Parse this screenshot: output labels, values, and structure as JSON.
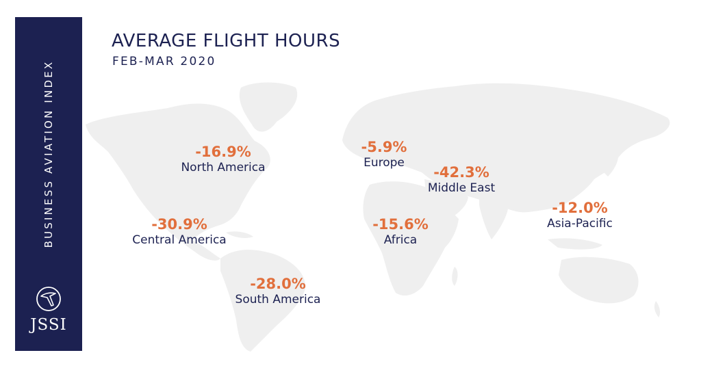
{
  "sidebar": {
    "vertical_text": "BUSINESS AVIATION INDEX",
    "logo_text": "JSSI"
  },
  "header": {
    "title": "AVERAGE FLIGHT HOURS",
    "subtitle": "FEB-MAR 2020"
  },
  "colors": {
    "navy": "#1c2151",
    "accent": "#e16f3c",
    "land": "#efefef"
  },
  "regions": [
    {
      "name": "North America",
      "value": "-16.9%"
    },
    {
      "name": "Europe",
      "value": "-5.9%"
    },
    {
      "name": "Middle East",
      "value": "-42.3%"
    },
    {
      "name": "Asia-Pacific",
      "value": "-12.0%"
    },
    {
      "name": "Central America",
      "value": "-30.9%"
    },
    {
      "name": "Africa",
      "value": "-15.6%"
    },
    {
      "name": "South America",
      "value": "-28.0%"
    }
  ]
}
